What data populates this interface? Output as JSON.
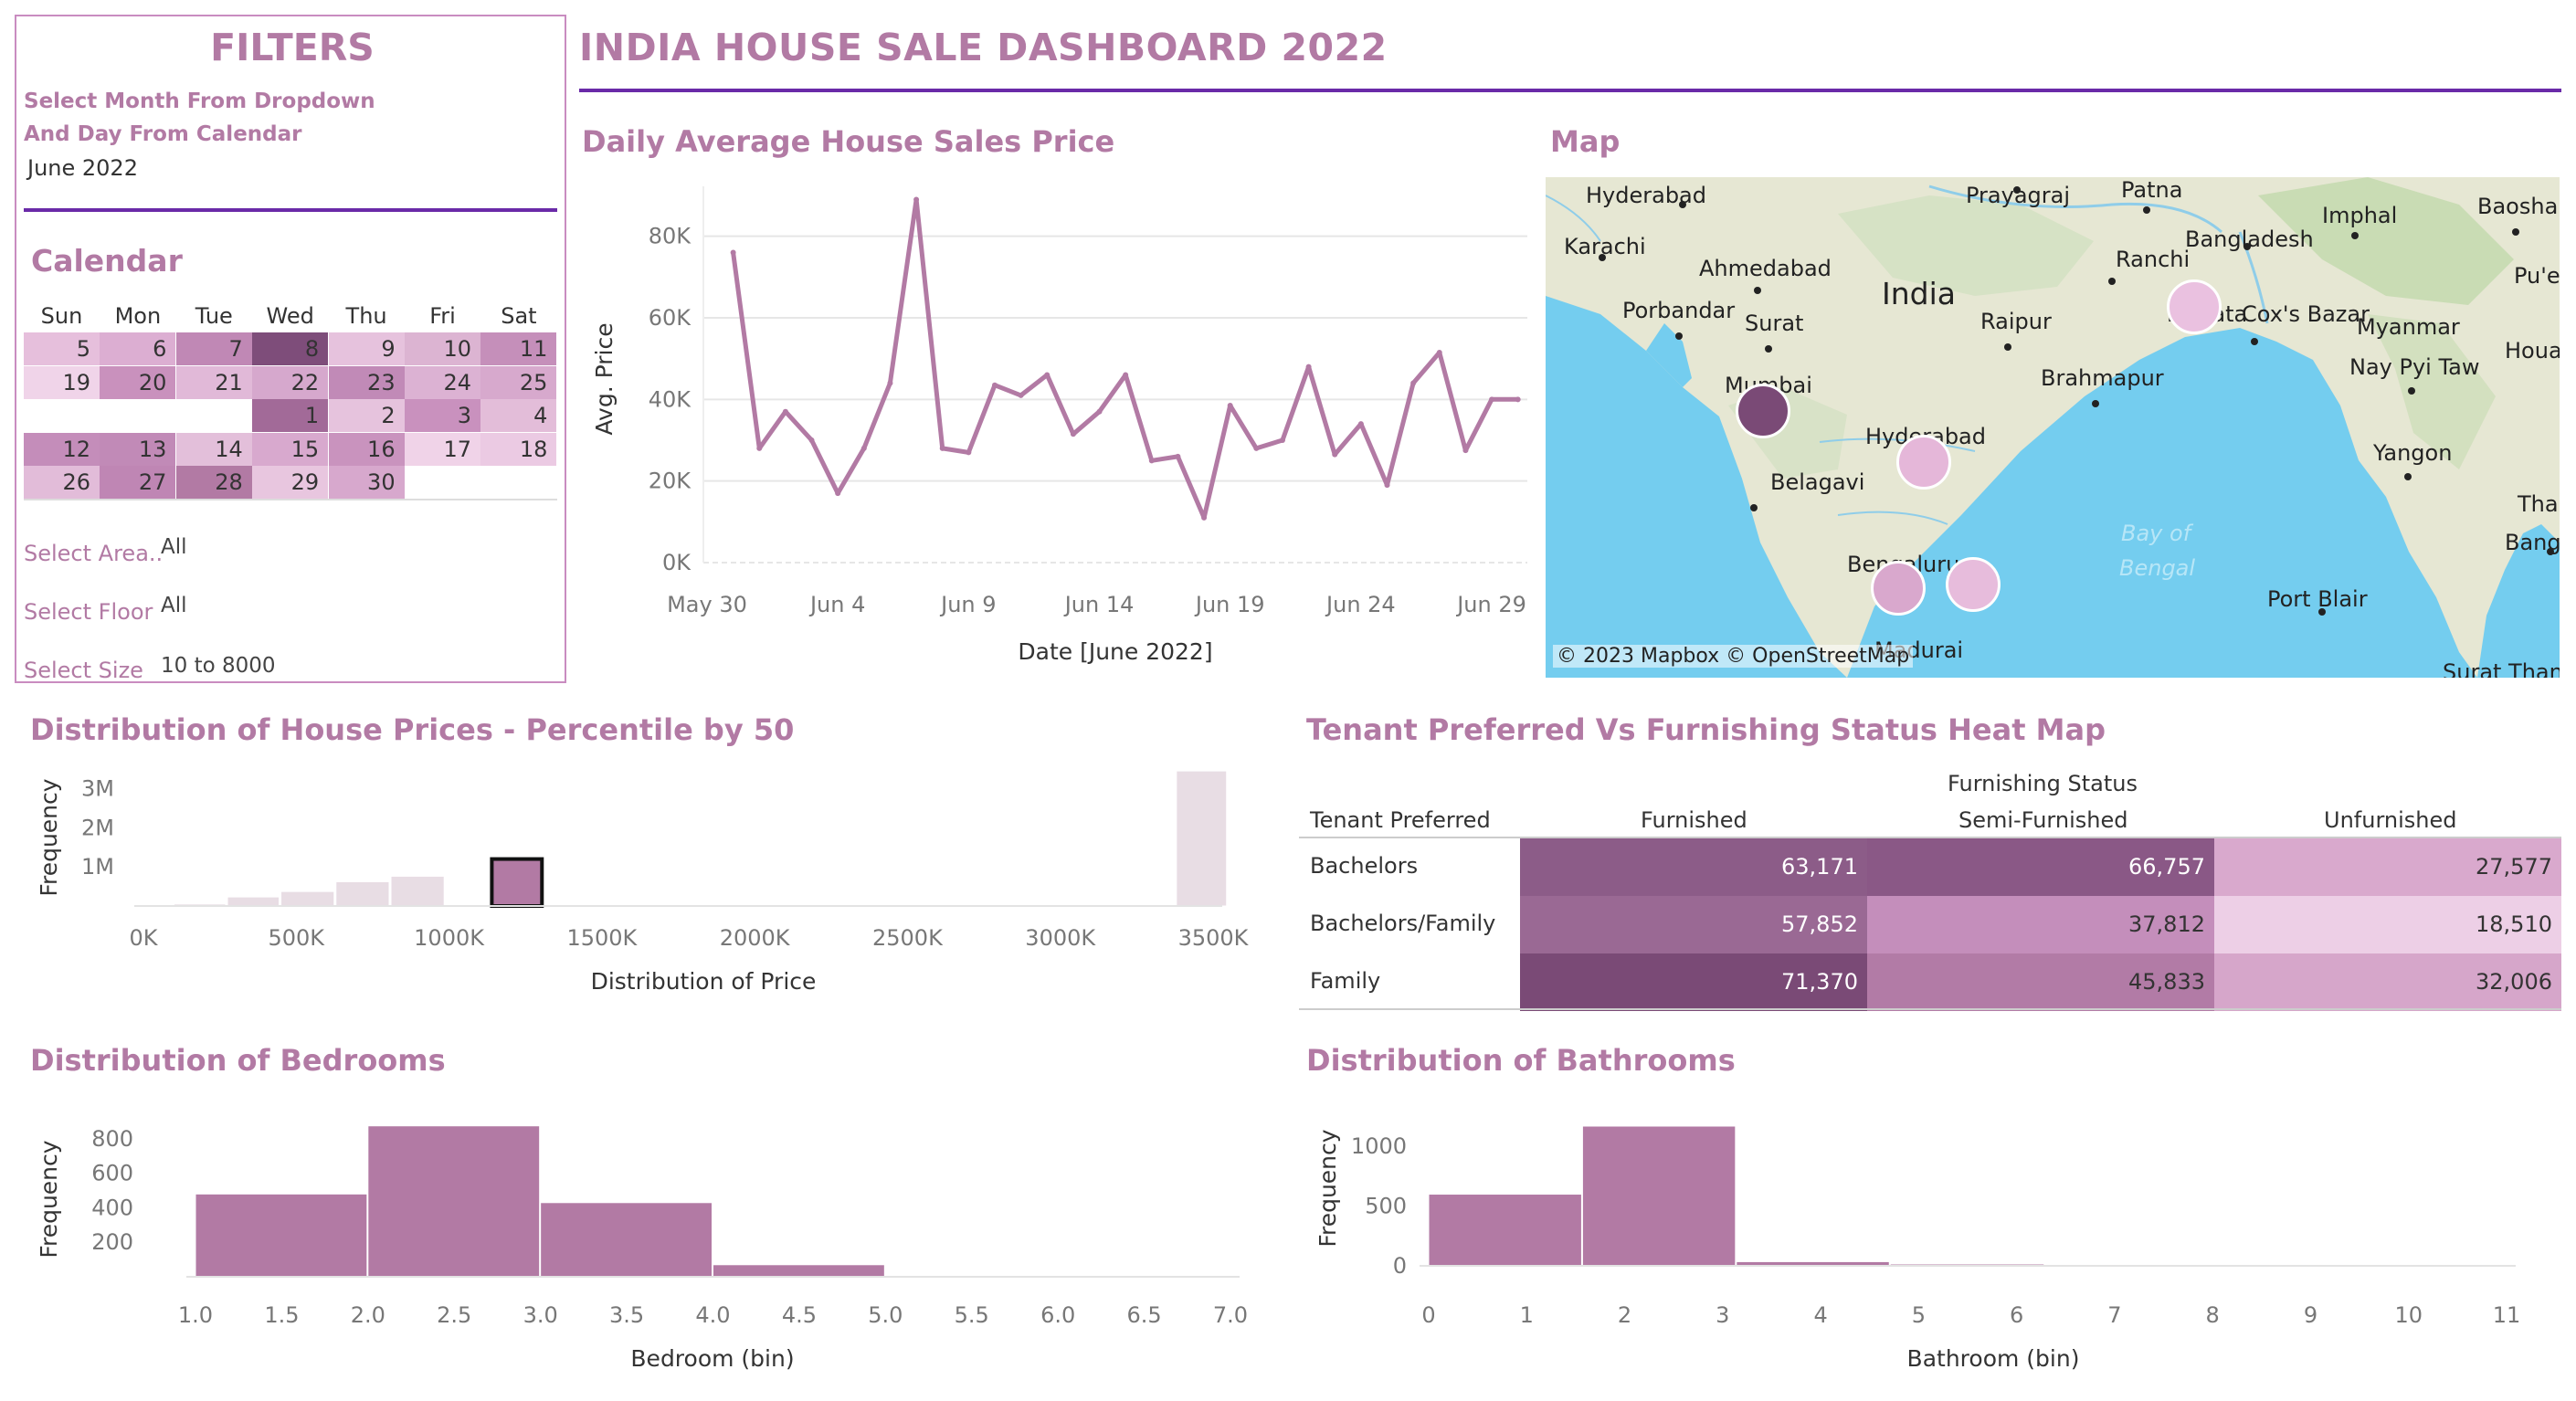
{
  "dashboard": {
    "title": "INDIA HOUSE SALE DASHBOARD 2022"
  },
  "filters": {
    "title": "FILTERS",
    "instruction_line1": "Select Month From Dropdown",
    "instruction_line2": "And Day From Calendar",
    "month_value": "June 2022",
    "calendar_title": "Calendar",
    "weekdays": [
      "Sun",
      "Mon",
      "Tue",
      "Wed",
      "Thu",
      "Fri",
      "Sat"
    ],
    "calendar_days": [
      {
        "day": "5",
        "row": 0,
        "col": 0,
        "color": "#e6bfdc"
      },
      {
        "day": "6",
        "row": 0,
        "col": 1,
        "color": "#dcaed2"
      },
      {
        "day": "7",
        "row": 0,
        "col": 2,
        "color": "#c088b5"
      },
      {
        "day": "8",
        "row": 0,
        "col": 3,
        "color": "#7e4d7a"
      },
      {
        "day": "9",
        "row": 0,
        "col": 4,
        "color": "#e6c2dd"
      },
      {
        "day": "10",
        "row": 0,
        "col": 5,
        "color": "#dcb4d2"
      },
      {
        "day": "11",
        "row": 0,
        "col": 6,
        "color": "#c58fba"
      },
      {
        "day": "19",
        "row": 1,
        "col": 0,
        "color": "#f0d4e9"
      },
      {
        "day": "20",
        "row": 1,
        "col": 1,
        "color": "#c991bd"
      },
      {
        "day": "21",
        "row": 1,
        "col": 2,
        "color": "#e1b9d8"
      },
      {
        "day": "22",
        "row": 1,
        "col": 3,
        "color": "#d6a8cd"
      },
      {
        "day": "23",
        "row": 1,
        "col": 4,
        "color": "#c18ab7"
      },
      {
        "day": "24",
        "row": 1,
        "col": 5,
        "color": "#dcb2d3"
      },
      {
        "day": "25",
        "row": 1,
        "col": 6,
        "color": "#d7a9cd"
      },
      {
        "day": "1",
        "row": 2,
        "col": 3,
        "color": "#a26a98"
      },
      {
        "day": "2",
        "row": 2,
        "col": 4,
        "color": "#e6c3dd"
      },
      {
        "day": "3",
        "row": 2,
        "col": 5,
        "color": "#c991be"
      },
      {
        "day": "4",
        "row": 2,
        "col": 6,
        "color": "#e3bdd9"
      },
      {
        "day": "12",
        "row": 3,
        "col": 0,
        "color": "#c48dba"
      },
      {
        "day": "13",
        "row": 3,
        "col": 1,
        "color": "#c18ab7"
      },
      {
        "day": "14",
        "row": 3,
        "col": 2,
        "color": "#e3bfda"
      },
      {
        "day": "15",
        "row": 3,
        "col": 3,
        "color": "#d8a9ce"
      },
      {
        "day": "16",
        "row": 3,
        "col": 4,
        "color": "#c993be"
      },
      {
        "day": "17",
        "row": 3,
        "col": 5,
        "color": "#f0d3e8"
      },
      {
        "day": "18",
        "row": 3,
        "col": 6,
        "color": "#ebcae3"
      },
      {
        "day": "26",
        "row": 4,
        "col": 0,
        "color": "#e2bcd9"
      },
      {
        "day": "27",
        "row": 4,
        "col": 1,
        "color": "#bf86b4"
      },
      {
        "day": "28",
        "row": 4,
        "col": 2,
        "color": "#b27aa4"
      },
      {
        "day": "29",
        "row": 4,
        "col": 3,
        "color": "#e8c6df"
      },
      {
        "day": "30",
        "row": 4,
        "col": 4,
        "color": "#d7a8cd"
      }
    ],
    "area_label": "Select Area..",
    "area_value": "All",
    "floor_label": "Select Floor",
    "floor_value": "All",
    "size_label": "Select Size",
    "size_value": "10 to 8000"
  },
  "line_chart_title": "Daily Average House Sales Price",
  "map": {
    "title": "Map",
    "attribution": "© 2023 Mapbox © OpenStreetMap",
    "labels": {
      "india": "India",
      "hyderabad_pk": "Hyderabad",
      "karachi": "Karachi",
      "ahmedabad": "Ahmedabad",
      "porbandar": "Porbandar",
      "surat": "Surat",
      "mumbai": "Mumbai",
      "belagavi": "Belagavi",
      "hyderabad": "Hyderabad",
      "bengaluru": "Bengaluru",
      "madurai": "Madurai",
      "prayagraj": "Prayagraj",
      "patna": "Patna",
      "ranchi": "Ranchi",
      "raipur": "Raipur",
      "brahmapur": "Brahmapur",
      "kolkata": "Kolkata",
      "imphal": "Imphal",
      "bangladesh": "Bangladesh",
      "baoshan": "Baoshan",
      "pue": "Pu'e",
      "coxs_bazar": "Cox's Bazar",
      "myanmar": "Myanmar",
      "houayxay": "Houayxay",
      "nay_pyi_taw": "Nay Pyi Taw",
      "yangon": "Yangon",
      "thailand": "Thailand",
      "bangkok": "Bangkok",
      "port_blair": "Port Blair",
      "bay_of": "Bay of",
      "bengal": "Bengal",
      "surat_thani": "Surat Thani"
    },
    "city_bubbles": [
      {
        "name": "Mumbai",
        "color": "#7a4a76"
      },
      {
        "name": "Hyderabad",
        "color": "#e5b7d9"
      },
      {
        "name": "Bengaluru",
        "color": "#d9a8cd"
      },
      {
        "name": "Chennai",
        "color": "#e7bcdc"
      },
      {
        "name": "Kolkata",
        "color": "#eac1e0"
      }
    ]
  },
  "price_hist_title": "Distribution of House Prices - Percentile by 50",
  "heatmap": {
    "title": "Tenant Preferred Vs Furnishing Status Heat Map",
    "column_group": "Furnishing Status",
    "row_header": "Tenant Preferred",
    "columns": [
      "Furnished",
      "Semi-Furnished",
      "Unfurnished"
    ],
    "rows": [
      {
        "label": "Bachelors",
        "values": [
          "63,171",
          "66,757",
          "27,577"
        ],
        "colors": [
          "#8c5c88",
          "#8a5886",
          "#d9a9cd"
        ]
      },
      {
        "label": "Bachelors/Family",
        "values": [
          "57,852",
          "37,812",
          "18,510"
        ],
        "colors": [
          "#9a6994",
          "#c48ebb",
          "#edcfe6"
        ]
      },
      {
        "label": "Family",
        "values": [
          "71,370",
          "45,833",
          "32,006"
        ],
        "colors": [
          "#7a4a76",
          "#b27ba6",
          "#d6a6ca"
        ]
      }
    ]
  },
  "bedrooms_title": "Distribution of Bedrooms",
  "bathrooms_title": "Distribution of Bathrooms",
  "chart_data": [
    {
      "type": "line",
      "title": "Daily Average House Sales Price",
      "xlabel": "Date [June 2022]",
      "ylabel": "Avg. Price",
      "x_ticks": [
        "May 30",
        "Jun 4",
        "Jun 9",
        "Jun 14",
        "Jun 19",
        "Jun 24",
        "Jun 29"
      ],
      "y_ticks": [
        "0K",
        "20K",
        "40K",
        "60K",
        "80K"
      ],
      "ylim": [
        0,
        90000
      ],
      "x": [
        "May 31",
        "Jun 1",
        "Jun 2",
        "Jun 3",
        "Jun 4",
        "Jun 5",
        "Jun 6",
        "Jun 7",
        "Jun 8",
        "Jun 9",
        "Jun 10",
        "Jun 11",
        "Jun 12",
        "Jun 13",
        "Jun 14",
        "Jun 15",
        "Jun 16",
        "Jun 17",
        "Jun 18",
        "Jun 19",
        "Jun 20",
        "Jun 21",
        "Jun 22",
        "Jun 23",
        "Jun 24",
        "Jun 25",
        "Jun 26",
        "Jun 27",
        "Jun 28",
        "Jun 29",
        "Jun 30"
      ],
      "values": [
        76000,
        28000,
        37000,
        30000,
        17000,
        28000,
        44000,
        89000,
        28000,
        27000,
        43500,
        41000,
        46000,
        31500,
        37000,
        46000,
        25000,
        26000,
        11000,
        38500,
        28000,
        30000,
        48000,
        26500,
        34000,
        19000,
        44000,
        51500,
        27500,
        40000,
        40000
      ],
      "color": "#b27aa4",
      "grid": true
    },
    {
      "type": "bar",
      "title": "Distribution of House Prices - Percentile by 50",
      "xlabel": "Distribution of Price",
      "ylabel": "Frequency",
      "x_ticks": [
        "0K",
        "500K",
        "1000K",
        "1500K",
        "2000K",
        "2500K",
        "3000K",
        "3500K"
      ],
      "y_ticks": [
        "1M",
        "2M",
        "3M"
      ],
      "xlim": [
        0,
        3500000
      ],
      "ylim": [
        0,
        3500000
      ],
      "bins": [
        {
          "x0": 100000,
          "x1": 275000,
          "value": 50000,
          "highlight": false
        },
        {
          "x0": 275000,
          "x1": 450000,
          "value": 230000,
          "highlight": false
        },
        {
          "x0": 450000,
          "x1": 630000,
          "value": 370000,
          "highlight": false
        },
        {
          "x0": 630000,
          "x1": 810000,
          "value": 620000,
          "highlight": false
        },
        {
          "x0": 810000,
          "x1": 990000,
          "value": 760000,
          "highlight": false
        },
        {
          "x0": 1140000,
          "x1": 1310000,
          "value": 1200000,
          "highlight": true
        },
        {
          "x0": 3380000,
          "x1": 3550000,
          "value": 3450000,
          "highlight": false
        }
      ],
      "color": "#e8dde4",
      "highlight_color": "#b27aa4"
    },
    {
      "type": "bar",
      "title": "Distribution of Bedrooms",
      "xlabel": "Bedroom (bin)",
      "ylabel": "Frequency",
      "x_ticks": [
        "1.0",
        "1.5",
        "2.0",
        "2.5",
        "3.0",
        "3.5",
        "4.0",
        "4.5",
        "5.0",
        "5.5",
        "6.0",
        "6.5",
        "7.0"
      ],
      "y_ticks": [
        "200",
        "400",
        "600",
        "800"
      ],
      "xlim": [
        1,
        7
      ],
      "ylim": [
        0,
        900
      ],
      "bins": [
        {
          "x0": 1,
          "x1": 2,
          "value": 480
        },
        {
          "x0": 2,
          "x1": 3,
          "value": 875
        },
        {
          "x0": 3,
          "x1": 4,
          "value": 430
        },
        {
          "x0": 4,
          "x1": 5,
          "value": 70
        },
        {
          "x0": 5,
          "x1": 6,
          "value": 5
        },
        {
          "x0": 6,
          "x1": 7,
          "value": 2
        }
      ],
      "color": "#b27aa4"
    },
    {
      "type": "bar",
      "title": "Distribution of Bathrooms",
      "xlabel": "Bathroom (bin)",
      "ylabel": "Frequency",
      "x_ticks": [
        "0",
        "1",
        "2",
        "3",
        "4",
        "5",
        "6",
        "7",
        "8",
        "9",
        "10",
        "11"
      ],
      "y_ticks": [
        "0",
        "500",
        "1000"
      ],
      "xlim": [
        0,
        11
      ],
      "ylim": [
        0,
        1300
      ],
      "bins": [
        {
          "x0": 0,
          "x1": 1.57,
          "value": 600
        },
        {
          "x0": 1.57,
          "x1": 3.14,
          "value": 1170
        },
        {
          "x0": 3.14,
          "x1": 4.71,
          "value": 35
        },
        {
          "x0": 4.71,
          "x1": 6.29,
          "value": 15
        },
        {
          "x0": 6.29,
          "x1": 7.86,
          "value": 2
        },
        {
          "x0": 9.43,
          "x1": 11,
          "value": 2
        }
      ],
      "color": "#b27aa4"
    }
  ]
}
